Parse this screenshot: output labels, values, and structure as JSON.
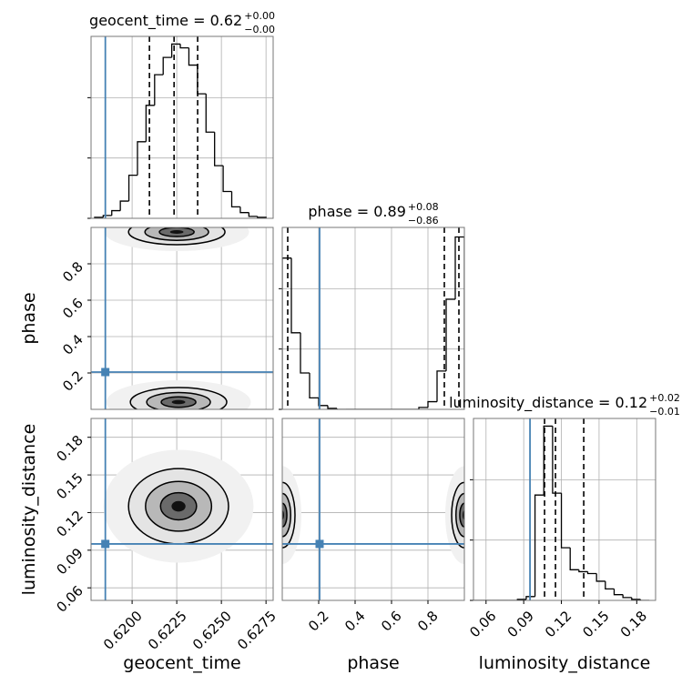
{
  "chart_data": {
    "type": "corner",
    "truth_color": "#4682b4",
    "hist_ylim": [
      0,
      190
    ],
    "hist_yticks": [
      0,
      63,
      126
    ],
    "grid": true,
    "params": [
      {
        "name": "geocent_time",
        "lim": [
          0.6177,
          0.6279
        ],
        "ticks": [
          {
            "value": 0.62,
            "label": "0.6200"
          },
          0.6225,
          {
            "value": 0.625,
            "label": "0.6250"
          },
          0.6275
        ],
        "truth": 0.6185,
        "title": {
          "text": "geocent_time = 0.62",
          "plus": "+0.00",
          "minus": "−0.00"
        },
        "quantiles": [
          0.62097,
          0.62235,
          0.62367
        ],
        "bins": [
          0.6179,
          0.61838,
          0.61886,
          0.61934,
          0.61982,
          0.6203,
          0.62078,
          0.62126,
          0.62174,
          0.62222,
          0.6227,
          0.62318,
          0.62366,
          0.62414,
          0.62462,
          0.6251,
          0.62558,
          0.62606,
          0.62654,
          0.62702,
          0.6275
        ],
        "counts": [
          1,
          3,
          8,
          18,
          45,
          80,
          118,
          150,
          168,
          182,
          178,
          160,
          130,
          90,
          55,
          28,
          12,
          6,
          2,
          1
        ]
      },
      {
        "name": "phase",
        "lim": [
          0,
          1
        ],
        "ticks": [
          0.2,
          0.4,
          0.6,
          0.8
        ],
        "truth": 0.205,
        "title": {
          "text": "phase = 0.89",
          "plus": "+0.08",
          "minus": "−0.86"
        },
        "quantiles": [
          0.03,
          0.89,
          0.97
        ],
        "bins": [
          0,
          0.05,
          0.1,
          0.15,
          0.2,
          0.25,
          0.3,
          0.35,
          0.4,
          0.45,
          0.5,
          0.55,
          0.6,
          0.65,
          0.7,
          0.75,
          0.8,
          0.85,
          0.9,
          0.95,
          1.0
        ],
        "counts": [
          158,
          80,
          38,
          12,
          4,
          1,
          0,
          0,
          0,
          0,
          0,
          0,
          0,
          0,
          0,
          2,
          8,
          40,
          115,
          180
        ]
      },
      {
        "name": "luminosity_distance",
        "lim": [
          0.05,
          0.195
        ],
        "ticks": [
          0.06,
          0.09,
          0.12,
          0.15,
          0.18
        ],
        "truth": 0.095,
        "title": {
          "text": "luminosity_distance = 0.12",
          "plus": "+0.02",
          "minus": "−0.01"
        },
        "quantiles": [
          0.1066,
          0.1153,
          0.1378
        ],
        "bins": [
          0.05,
          0.057,
          0.064,
          0.071,
          0.078,
          0.085,
          0.092,
          0.099,
          0.106,
          0.113,
          0.12,
          0.127,
          0.134,
          0.141,
          0.148,
          0.155,
          0.162,
          0.169,
          0.176,
          0.183,
          0.19
        ],
        "counts": [
          0,
          0,
          0,
          0,
          0,
          1,
          4,
          110,
          182,
          112,
          55,
          32,
          30,
          28,
          20,
          12,
          6,
          3,
          1,
          0
        ]
      }
    ],
    "pairs": [
      {
        "x": 0,
        "y": 1,
        "blobs": [
          {
            "x": 0.6225,
            "y": 0.975,
            "rx": 0.0027,
            "ry": 0.07
          },
          {
            "x": 0.6226,
            "y": 0.04,
            "rx": 0.0027,
            "ry": 0.08
          }
        ]
      },
      {
        "x": 0,
        "y": 2,
        "blobs": [
          {
            "x": 0.6226,
            "y": 0.125,
            "rx": 0.0028,
            "ry": 0.03
          }
        ]
      },
      {
        "x": 1,
        "y": 2,
        "blobs": [
          {
            "x": 0.0,
            "y": 0.118,
            "rx": 0.07,
            "ry": 0.026
          },
          {
            "x": 1.0,
            "y": 0.118,
            "rx": 0.07,
            "ry": 0.026
          }
        ]
      }
    ]
  }
}
